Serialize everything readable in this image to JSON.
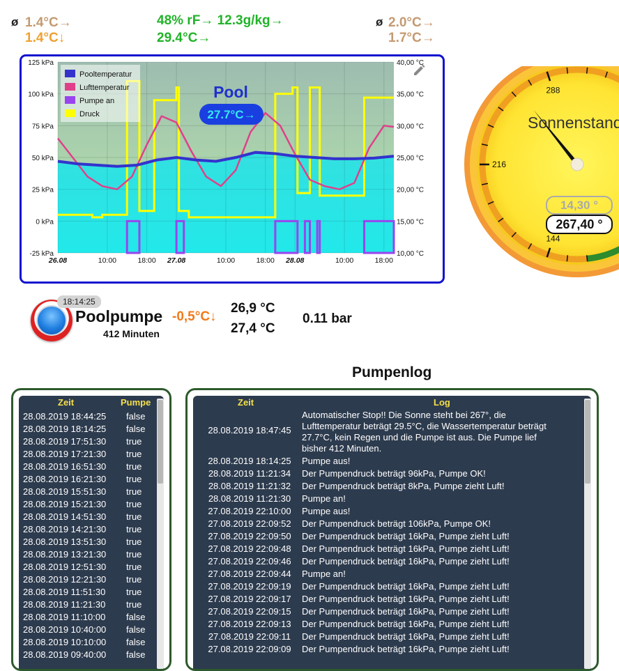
{
  "top_stats": {
    "left_avg_symbol": "ø",
    "left_line1": "1.4°C→",
    "left_line2": "1.4°C↓",
    "center_line1": "48% rF→ 12.3g/kg→",
    "center_line2": "29.4°C→",
    "right_avg_symbol": "ø",
    "right_line1": "2.0°C→",
    "right_line2": "1.7°C→"
  },
  "chart_data": {
    "type": "line",
    "left_axis_ticks": [
      "125 kPa",
      "100 kPa",
      "75 kPa",
      "50 kPa",
      "25 kPa",
      "0 kPa",
      "-25 kPa"
    ],
    "left_axis_range": [
      -25,
      125
    ],
    "right_axis_ticks": [
      "40,00 °C",
      "35,00 °C",
      "30,00 °C",
      "25,00 °C",
      "20,00 °C",
      "15,00 °C",
      "10,00 °C"
    ],
    "right_axis_range": [
      10,
      40
    ],
    "x_tick_labels": [
      "26.08",
      "10:00",
      "18:00",
      "27.08",
      "10:00",
      "18:00",
      "28.08",
      "10:00",
      "18:00"
    ],
    "x_range_hours": [
      0,
      68
    ],
    "x_ticks_hours": [
      0,
      10,
      18,
      24,
      34,
      42,
      48,
      58,
      66
    ],
    "legend": [
      "Pooltemperatur",
      "Lufttemperatur",
      "Pumpe an",
      "Druck"
    ],
    "overlay_title": "Pool",
    "overlay_value": "27.7°C→",
    "series": [
      {
        "name": "Pooltemperatur",
        "color": "#3333cc",
        "x": [
          0,
          4,
          8,
          12,
          16,
          20,
          24,
          28,
          32,
          36,
          40,
          44,
          48,
          52,
          56,
          60,
          64,
          68
        ],
        "y_celsius": [
          24.4,
          24.0,
          23.8,
          23.6,
          23.8,
          24.6,
          25.0,
          24.6,
          24.4,
          25.0,
          25.8,
          25.6,
          25.2,
          25.0,
          24.8,
          24.8,
          24.9,
          25.2
        ]
      },
      {
        "name": "Lufttemperatur",
        "color": "#e0408a",
        "x": [
          0,
          3,
          6,
          9,
          12,
          15,
          18,
          21,
          24,
          27,
          30,
          33,
          36,
          39,
          42,
          45,
          48,
          51,
          54,
          57,
          60,
          63,
          66,
          68
        ],
        "y_celsius": [
          28.0,
          25.0,
          22.0,
          20.5,
          20.0,
          22.0,
          27.0,
          31.5,
          30.5,
          26.0,
          22.0,
          20.5,
          23.0,
          29.0,
          32.0,
          30.0,
          25.5,
          21.5,
          20.5,
          20.0,
          21.0,
          26.5,
          30.0,
          29.8
        ]
      },
      {
        "name": "Pumpe an",
        "color": "#9944ee",
        "on_intervals_hours": [
          [
            14,
            16.5
          ],
          [
            24,
            25.5
          ],
          [
            44,
            48.5
          ],
          [
            50,
            51
          ],
          [
            52.5,
            53
          ],
          [
            62,
            68
          ]
        ]
      },
      {
        "name": "Druck",
        "color": "#ffff00",
        "x": [
          0,
          7,
          7,
          9,
          9,
          14,
          14,
          16.5,
          16.5,
          19.5,
          19.5,
          24,
          24,
          24.5,
          24.5,
          26.5,
          26.5,
          44,
          44,
          47.5,
          47.5,
          48.5,
          48.5,
          51,
          51,
          53,
          53,
          62,
          62,
          68
        ],
        "y_kpa": [
          5,
          5,
          3,
          3,
          5,
          5,
          110,
          110,
          8,
          8,
          95,
          95,
          105,
          105,
          8,
          8,
          3,
          3,
          100,
          100,
          105,
          105,
          22,
          22,
          105,
          105,
          20,
          20,
          97,
          97
        ]
      }
    ]
  },
  "gauge": {
    "title": "Sonnenstand",
    "tick_labels": [
      "288",
      "216",
      "144"
    ],
    "secondary_value": "14,30 °",
    "primary_value": "267,40 °",
    "needle_value": 267.4
  },
  "pump_status": {
    "time": "18:14:25",
    "name": "Poolpumpe",
    "delta": "-0,5°C↓",
    "runtime": "412 Minuten",
    "temp1": "26,9 °C",
    "temp2": "27,4 °C",
    "pressure": "0.11 bar"
  },
  "log_title": "Pumpenlog",
  "pump_table": {
    "headers": [
      "Zeit",
      "Pumpe"
    ],
    "rows": [
      [
        "28.08.2019 18:44:25",
        "false"
      ],
      [
        "28.08.2019 18:14:25",
        "false"
      ],
      [
        "28.08.2019 17:51:30",
        "true"
      ],
      [
        "28.08.2019 17:21:30",
        "true"
      ],
      [
        "28.08.2019 16:51:30",
        "true"
      ],
      [
        "28.08.2019 16:21:30",
        "true"
      ],
      [
        "28.08.2019 15:51:30",
        "true"
      ],
      [
        "28.08.2019 15:21:30",
        "true"
      ],
      [
        "28.08.2019 14:51:30",
        "true"
      ],
      [
        "28.08.2019 14:21:30",
        "true"
      ],
      [
        "28.08.2019 13:51:30",
        "true"
      ],
      [
        "28.08.2019 13:21:30",
        "true"
      ],
      [
        "28.08.2019 12:51:30",
        "true"
      ],
      [
        "28.08.2019 12:21:30",
        "true"
      ],
      [
        "28.08.2019 11:51:30",
        "true"
      ],
      [
        "28.08.2019 11:21:30",
        "true"
      ],
      [
        "28.08.2019 11:10:00",
        "false"
      ],
      [
        "28.08.2019 10:40:00",
        "false"
      ],
      [
        "28.08.2019 10:10:00",
        "false"
      ],
      [
        "28.08.2019 09:40:00",
        "false"
      ]
    ]
  },
  "log_table": {
    "headers": [
      "Zeit",
      "Log"
    ],
    "rows": [
      [
        "28.08.2019 18:47:45",
        "Automatischer Stop!! Die Sonne steht bei 267°, die Lufttemperatur beträgt 29.5°C, die Wassertemperatur beträgt 27.7°C, kein Regen und die Pumpe ist aus. Die Pumpe lief bisher 412 Minuten."
      ],
      [
        "28.08.2019 18:14:25",
        "Pumpe aus!"
      ],
      [
        "28.08.2019 11:21:34",
        "Der Pumpendruck beträgt 96kPa, Pumpe OK!"
      ],
      [
        "28.08.2019 11:21:32",
        "Der Pumpendruck beträgt 8kPa, Pumpe zieht Luft!"
      ],
      [
        "28.08.2019 11:21:30",
        "Pumpe an!"
      ],
      [
        "27.08.2019 22:10:00",
        "Pumpe aus!"
      ],
      [
        "27.08.2019 22:09:52",
        "Der Pumpendruck beträgt 106kPa, Pumpe OK!"
      ],
      [
        "27.08.2019 22:09:50",
        "Der Pumpendruck beträgt 16kPa, Pumpe zieht Luft!"
      ],
      [
        "27.08.2019 22:09:48",
        "Der Pumpendruck beträgt 16kPa, Pumpe zieht Luft!"
      ],
      [
        "27.08.2019 22:09:46",
        "Der Pumpendruck beträgt 16kPa, Pumpe zieht Luft!"
      ],
      [
        "27.08.2019 22:09:44",
        "Pumpe an!"
      ],
      [
        "27.08.2019 22:09:19",
        "Der Pumpendruck beträgt 16kPa, Pumpe zieht Luft!"
      ],
      [
        "27.08.2019 22:09:17",
        "Der Pumpendruck beträgt 16kPa, Pumpe zieht Luft!"
      ],
      [
        "27.08.2019 22:09:15",
        "Der Pumpendruck beträgt 16kPa, Pumpe zieht Luft!"
      ],
      [
        "27.08.2019 22:09:13",
        "Der Pumpendruck beträgt 16kPa, Pumpe zieht Luft!"
      ],
      [
        "27.08.2019 22:09:11",
        "Der Pumpendruck beträgt 16kPa, Pumpe zieht Luft!"
      ],
      [
        "27.08.2019 22:09:09",
        "Der Pumpendruck beträgt 16kPa, Pumpe zieht Luft!"
      ]
    ]
  }
}
